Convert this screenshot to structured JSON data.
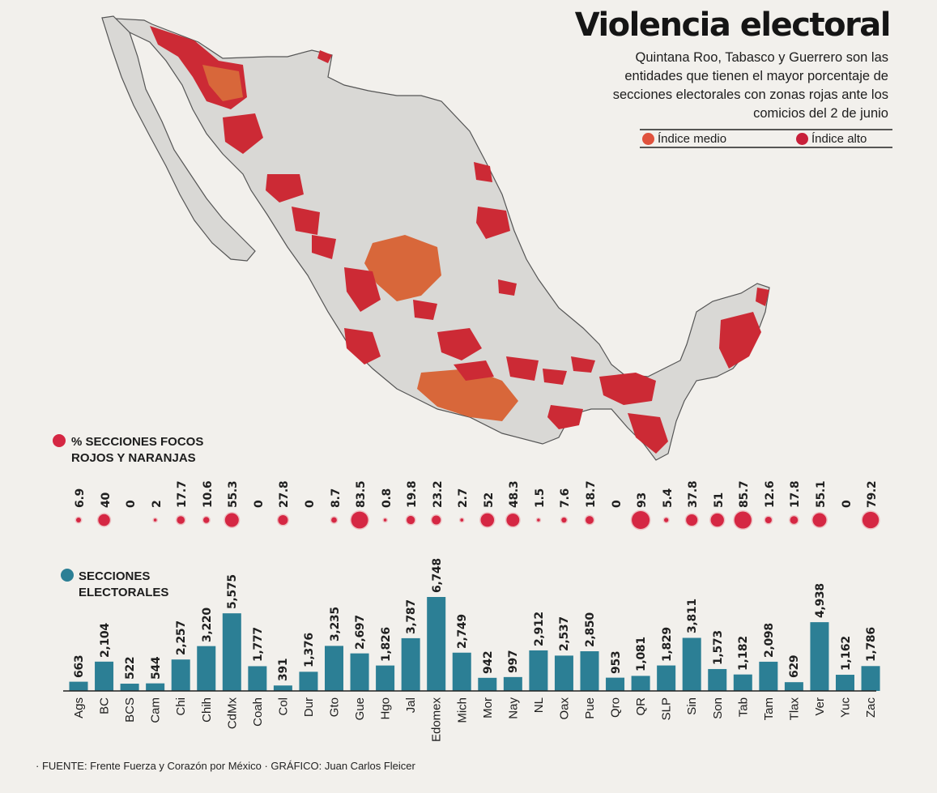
{
  "title": "Violencia electoral",
  "subtitle": "Quintana Roo, Tabasco y Guerrero son las entidades que tienen el mayor porcentaje de secciones electorales con zonas rojas ante los comicios del 2 de junio",
  "legend": {
    "medio": {
      "label": "Índice medio",
      "color": "#e0523d"
    },
    "alto": {
      "label": "Índice alto",
      "color": "#c8203a"
    }
  },
  "colors": {
    "bar": "#2c7f95",
    "bubble": "#d52743",
    "map_land": "#d9d8d5",
    "map_red": "#cc2a35",
    "map_orange": "#d8673a"
  },
  "map": {
    "name": "México",
    "icon": "mexico-map-shape"
  },
  "chart_data": [
    {
      "type": "scatter",
      "label": "% SECCIONES FOCOS ROJOS Y NARANJAS",
      "categories": [
        "Ags",
        "BC",
        "BCS",
        "Cam",
        "Chi",
        "Chih",
        "CdMx",
        "Coah",
        "Col",
        "Dur",
        "Gto",
        "Gue",
        "Hgo",
        "Jal",
        "Edomex",
        "Mich",
        "Mor",
        "Nay",
        "NL",
        "Oax",
        "Pue",
        "Qro",
        "QR",
        "SLP",
        "Sin",
        "Son",
        "Tab",
        "Tam",
        "Tlax",
        "Ver",
        "Yuc",
        "Zac"
      ],
      "values": [
        6.9,
        40,
        0,
        2,
        17.7,
        10.6,
        55.3,
        0,
        27.8,
        0,
        8.7,
        83.5,
        0.8,
        19.8,
        23.2,
        2.7,
        52,
        48.3,
        1.5,
        7.6,
        18.7,
        0,
        93,
        5.4,
        37.8,
        51,
        85.7,
        12.6,
        17.8,
        55.1,
        0,
        79.2
      ],
      "labels": [
        "6.9",
        "40",
        "0",
        "2",
        "17.7",
        "10.6",
        "55.3",
        "0",
        "27.8",
        "0",
        "8.7",
        "83.5",
        "0.8",
        "19.8",
        "23.2",
        "2.7",
        "52",
        "48.3",
        "1.5",
        "7.6",
        "18.7",
        "0",
        "93",
        "5.4",
        "37.8",
        "51",
        "85.7",
        "12.6",
        "17.8",
        "55.1",
        "0",
        "79.2"
      ]
    },
    {
      "type": "bar",
      "label": "SECCIONES ELECTORALES",
      "categories": [
        "Ags",
        "BC",
        "BCS",
        "Cam",
        "Chi",
        "Chih",
        "CdMx",
        "Coah",
        "Col",
        "Dur",
        "Gto",
        "Gue",
        "Hgo",
        "Jal",
        "Edomex",
        "Mich",
        "Mor",
        "Nay",
        "NL",
        "Oax",
        "Pue",
        "Qro",
        "QR",
        "SLP",
        "Sin",
        "Son",
        "Tab",
        "Tam",
        "Tlax",
        "Ver",
        "Yuc",
        "Zac"
      ],
      "values": [
        663,
        2104,
        522,
        544,
        2257,
        3220,
        5575,
        1777,
        391,
        1376,
        3235,
        2697,
        1826,
        3787,
        6748,
        2749,
        942,
        997,
        2912,
        2537,
        2850,
        953,
        1081,
        1829,
        3811,
        1573,
        1182,
        2098,
        629,
        4938,
        1162,
        1786
      ],
      "labels": [
        "663",
        "2,104",
        "522",
        "544",
        "2,257",
        "3,220",
        "5,575",
        "1,777",
        "391",
        "1,376",
        "3,235",
        "2,697",
        "1,826",
        "3,787",
        "6,748",
        "2,749",
        "942",
        "997",
        "2,912",
        "2,537",
        "2,850",
        "953",
        "1,081",
        "1,829",
        "3,811",
        "1,573",
        "1,182",
        "2,098",
        "629",
        "4,938",
        "1,162",
        "1,786"
      ]
    }
  ],
  "source": {
    "prefix": "· FUENTE: ",
    "text": "Frente Fuerza y Corazón por México",
    "sep": " · GRÁFICO: ",
    "author": "Juan Carlos Fleicer"
  }
}
